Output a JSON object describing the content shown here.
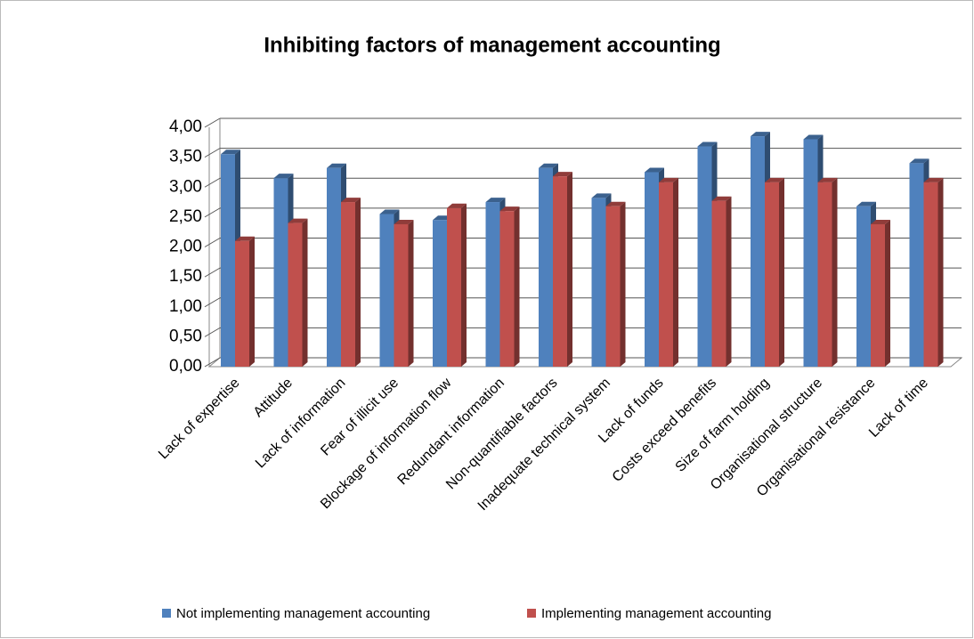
{
  "chart_data": {
    "type": "bar3d",
    "title": "Inhibiting factors of management accounting",
    "categories": [
      "Lack of expertise",
      "Attitude",
      "Lack of information",
      "Fear of illicit use",
      "Blockage of information flow",
      "Redundant information",
      "Non-quantifiable factors",
      "Inadequate technical system",
      "Lack of funds",
      "Costs exceed benefits",
      "Size of farm holding",
      "Organisational structure",
      "Organisational resistance",
      "Lack of time"
    ],
    "series": [
      {
        "name": "Not implementing management accounting",
        "color": "#4f81bd",
        "values": [
          3.55,
          3.15,
          3.32,
          2.55,
          2.45,
          2.75,
          3.32,
          2.82,
          3.25,
          3.68,
          3.85,
          3.8,
          2.68,
          3.4
        ]
      },
      {
        "name": "Implementing management accounting",
        "color": "#c0504d",
        "values": [
          2.1,
          2.4,
          2.75,
          2.38,
          2.65,
          2.6,
          3.18,
          2.68,
          3.08,
          2.77,
          3.08,
          3.08,
          2.38,
          3.08
        ]
      }
    ],
    "ylim": [
      0,
      4
    ],
    "yticks": [
      {
        "value": 0,
        "label": "0,00"
      },
      {
        "value": 0.5,
        "label": "0,50"
      },
      {
        "value": 1,
        "label": "1,00"
      },
      {
        "value": 1.5,
        "label": "1,50"
      },
      {
        "value": 2,
        "label": "2,00"
      },
      {
        "value": 2.5,
        "label": "2,50"
      },
      {
        "value": 3,
        "label": "3,00"
      },
      {
        "value": 3.5,
        "label": "3,50"
      },
      {
        "value": 4,
        "label": "4,00"
      }
    ],
    "grid": true
  }
}
